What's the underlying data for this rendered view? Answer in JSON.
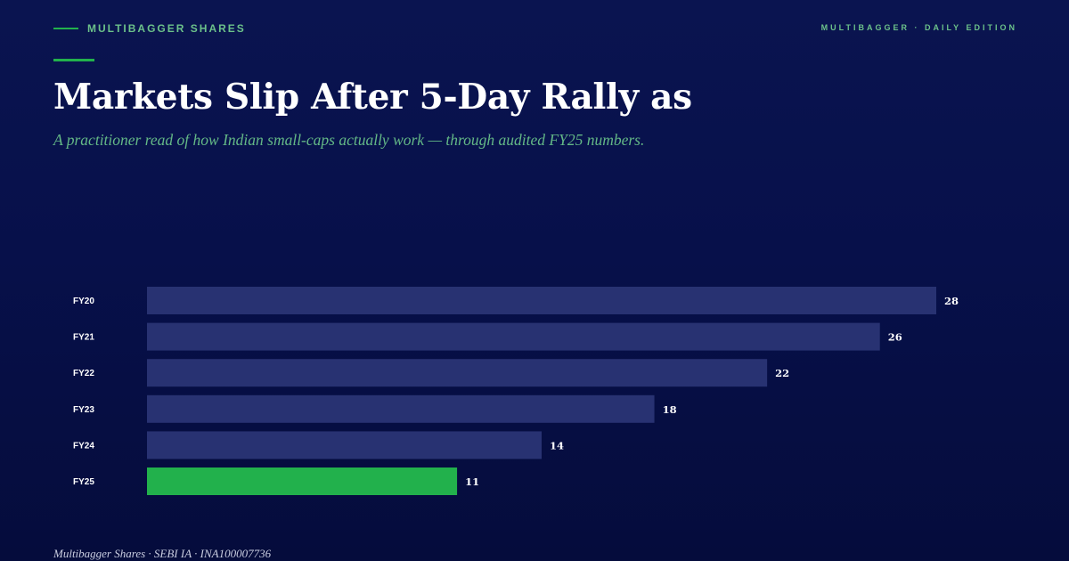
{
  "header": {
    "brand": "MULTIBAGGER SHARES",
    "edition": "MULTIBAGGER · DAILY EDITION"
  },
  "headline": "Markets Slip After 5-Day Rally as",
  "dek": "A practitioner read of how Indian small-caps actually work — through audited FY25 numbers.",
  "footer": "Multibagger Shares · SEBI IA · INA100007736",
  "colors": {
    "bar": "#283272",
    "highlight": "#22b14c",
    "accent": "#6cc28a",
    "background": "#07104a"
  },
  "chart_data": {
    "type": "bar",
    "orientation": "horizontal",
    "categories": [
      "FY20",
      "FY21",
      "FY22",
      "FY23",
      "FY24",
      "FY25"
    ],
    "values": [
      28,
      26,
      22,
      18,
      14,
      11
    ],
    "highlight": "FY25",
    "title": "",
    "xlabel": "",
    "ylabel": "",
    "xlim": [
      0,
      28
    ],
    "grid": false,
    "legend": "none"
  }
}
